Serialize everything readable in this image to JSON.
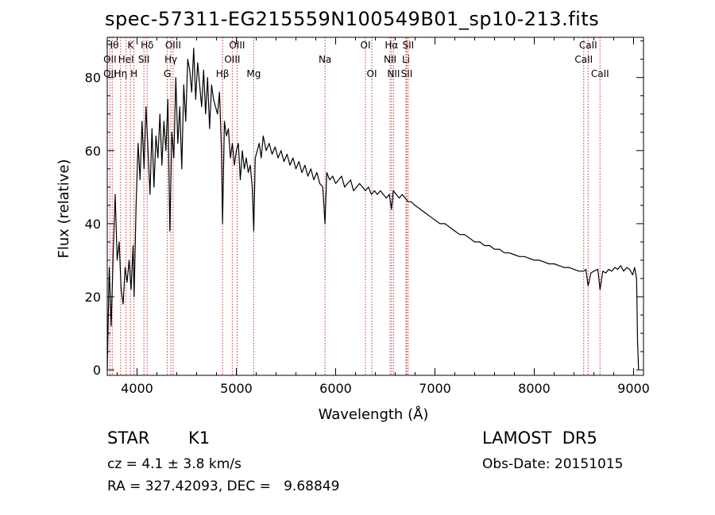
{
  "title": "spec-57311-EG215559N100549B01_sp10-213.fits",
  "footer": {
    "class": "STAR",
    "subclass": "K1",
    "survey": "LAMOST  DR5",
    "cz": "cz = 4.1 ± 3.8 km/s",
    "obs_date": "Obs-Date: 20151015",
    "coords": "RA = 327.42093, DEC =   9.68849"
  },
  "chart_data": {
    "type": "line",
    "xlabel": "Wavelength (Å)",
    "ylabel": "Flux (relative)",
    "xlim": [
      3700,
      9100
    ],
    "ylim": [
      -1.5,
      91
    ],
    "xticks": [
      4000,
      5000,
      6000,
      7000,
      8000,
      9000
    ],
    "yticks": [
      0,
      20,
      40,
      60,
      80
    ],
    "line_color": "#000000",
    "marker_color": "#cc3333",
    "series": [
      {
        "x": [
          3700,
          3720,
          3740,
          3760,
          3780,
          3800,
          3820,
          3840,
          3860,
          3880,
          3900,
          3920,
          3940,
          3960,
          3970,
          3990,
          4010,
          4030,
          4050,
          4070,
          4090,
          4110,
          4130,
          4150,
          4170,
          4190,
          4210,
          4230,
          4250,
          4270,
          4290,
          4310,
          4330,
          4350,
          4370,
          4390,
          4410,
          4430,
          4450,
          4470,
          4490,
          4510,
          4530,
          4550,
          4570,
          4590,
          4610,
          4630,
          4650,
          4670,
          4690,
          4710,
          4730,
          4750,
          4770,
          4790,
          4810,
          4830,
          4850,
          4861,
          4880,
          4900,
          4920,
          4940,
          4960,
          4980,
          5000,
          5020,
          5040,
          5060,
          5080,
          5100,
          5120,
          5140,
          5160,
          5175,
          5190,
          5210,
          5230,
          5250,
          5270,
          5300,
          5330,
          5360,
          5390,
          5420,
          5450,
          5480,
          5510,
          5540,
          5570,
          5600,
          5630,
          5660,
          5690,
          5720,
          5750,
          5780,
          5810,
          5840,
          5870,
          5893,
          5910,
          5940,
          5970,
          6000,
          6030,
          6060,
          6090,
          6120,
          6150,
          6180,
          6210,
          6240,
          6270,
          6300,
          6330,
          6360,
          6390,
          6420,
          6450,
          6480,
          6510,
          6540,
          6563,
          6580,
          6610,
          6640,
          6670,
          6700,
          6730,
          6760,
          6800,
          6850,
          6900,
          6950,
          7000,
          7050,
          7100,
          7150,
          7200,
          7250,
          7300,
          7350,
          7400,
          7450,
          7500,
          7550,
          7600,
          7650,
          7700,
          7750,
          7800,
          7850,
          7900,
          7950,
          8000,
          8050,
          8100,
          8150,
          8200,
          8250,
          8300,
          8350,
          8400,
          8450,
          8498,
          8520,
          8542,
          8570,
          8600,
          8640,
          8662,
          8690,
          8720,
          8750,
          8780,
          8810,
          8840,
          8870,
          8900,
          8930,
          8960,
          8990,
          9010,
          9030,
          9040,
          9050
        ],
        "y": [
          0,
          28,
          12,
          32,
          48,
          30,
          35,
          22,
          18,
          28,
          24,
          30,
          22,
          34,
          20,
          45,
          62,
          52,
          68,
          55,
          72,
          60,
          48,
          66,
          50,
          64,
          58,
          70,
          56,
          68,
          60,
          74,
          38,
          65,
          58,
          80,
          62,
          72,
          55,
          78,
          68,
          85,
          82,
          76,
          88,
          74,
          84,
          78,
          72,
          82,
          70,
          80,
          66,
          78,
          74,
          72,
          70,
          76,
          60,
          40,
          68,
          64,
          66,
          58,
          62,
          56,
          60,
          62,
          52,
          60,
          55,
          58,
          54,
          56,
          50,
          38,
          58,
          60,
          62,
          58,
          64,
          60,
          62,
          59,
          61,
          58,
          60,
          57,
          59,
          56,
          58,
          55,
          57,
          54,
          56,
          53,
          55,
          52,
          54,
          51,
          50,
          40,
          54,
          52,
          53,
          51,
          52,
          53,
          50,
          51,
          52,
          49,
          50,
          51,
          50,
          49,
          50,
          48,
          49,
          48,
          49,
          48,
          47,
          48,
          44,
          49,
          48,
          47,
          48,
          47,
          46,
          46,
          45,
          44,
          43,
          42,
          41,
          40,
          40,
          39,
          38,
          37,
          37,
          36,
          35,
          35,
          34,
          34,
          33,
          33,
          32,
          32,
          31.5,
          31,
          31,
          30.5,
          30,
          30,
          29.5,
          29,
          29,
          28.5,
          28,
          28,
          27.5,
          27,
          27,
          27.5,
          23,
          26.5,
          27,
          27.5,
          22,
          27,
          26.5,
          27.5,
          27,
          28,
          27.5,
          28.5,
          27,
          28,
          27.5,
          26,
          28,
          25,
          8,
          0
        ]
      }
    ],
    "lines": [
      {
        "label": "Hθ",
        "x": 3750,
        "row": 0
      },
      {
        "label": "K",
        "x": 3934,
        "row": 0
      },
      {
        "label": "Hδ",
        "x": 4102,
        "row": 0
      },
      {
        "label": "OIII",
        "x": 4363,
        "row": 0
      },
      {
        "label": "OIII",
        "x": 5007,
        "row": 0
      },
      {
        "label": "OI",
        "x": 6300,
        "row": 0
      },
      {
        "label": "Hα",
        "x": 6563,
        "row": 0
      },
      {
        "label": "SII",
        "x": 6731,
        "row": 0
      },
      {
        "label": "CaII",
        "x": 8542,
        "row": 0
      },
      {
        "label": "OII",
        "x": 3727,
        "row": 1
      },
      {
        "label": "HeI",
        "x": 3889,
        "row": 1
      },
      {
        "label": "SII",
        "x": 4069,
        "row": 1
      },
      {
        "label": "Hγ",
        "x": 4340,
        "row": 1
      },
      {
        "label": "OIII",
        "x": 4959,
        "row": 1
      },
      {
        "label": "Na",
        "x": 5893,
        "row": 1
      },
      {
        "label": "NII",
        "x": 6548,
        "row": 1
      },
      {
        "label": "Li",
        "x": 6708,
        "row": 1
      },
      {
        "label": "CaII",
        "x": 8498,
        "row": 1
      },
      {
        "label": "OII",
        "x": 3727,
        "row": 2
      },
      {
        "label": "Hη",
        "x": 3835,
        "row": 2
      },
      {
        "label": "H",
        "x": 3969,
        "row": 2
      },
      {
        "label": "G",
        "x": 4305,
        "row": 2
      },
      {
        "label": "Hβ",
        "x": 4861,
        "row": 2
      },
      {
        "label": "Mg",
        "x": 5175,
        "row": 2
      },
      {
        "label": "OI",
        "x": 6364,
        "row": 2
      },
      {
        "label": "NII",
        "x": 6583,
        "row": 2
      },
      {
        "label": "SII",
        "x": 6716,
        "row": 2
      },
      {
        "label": "CaII",
        "x": 8662,
        "row": 2
      }
    ]
  }
}
